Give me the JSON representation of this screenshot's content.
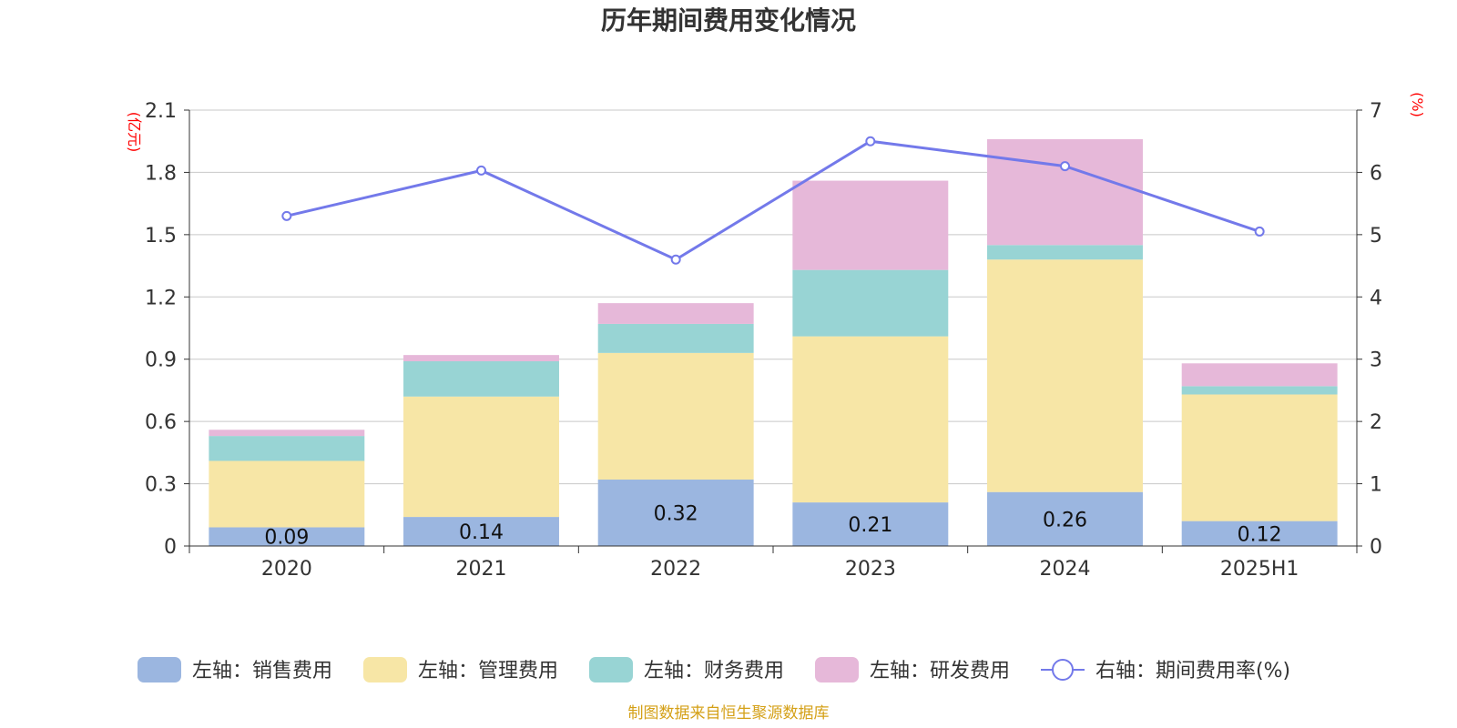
{
  "title": "历年期间费用变化情况",
  "left_unit": "(亿元)",
  "right_unit": "(%)",
  "source": "制图数据来自恒生聚源数据库",
  "colors": {
    "sales": "#9bb6e0",
    "admin": "#f7e6a6",
    "finance": "#98d4d4",
    "rd": "#e6b8d9",
    "rate": "#7379ea",
    "unit_red": "#ff0000",
    "source_gold": "#d4a017",
    "grid": "#c8c8c8",
    "axis": "#333333"
  },
  "chart_data": {
    "type": "bar",
    "stacked": true,
    "categories": [
      "2020",
      "2021",
      "2022",
      "2023",
      "2024",
      "2025H1"
    ],
    "series": [
      {
        "name": "左轴：销售费用",
        "axis": "left",
        "values": [
          0.09,
          0.14,
          0.32,
          0.21,
          0.26,
          0.12
        ],
        "labels": [
          "0.09",
          "0.14",
          "0.32",
          "0.21",
          "0.26",
          "0.12"
        ]
      },
      {
        "name": "左轴：管理费用",
        "axis": "left",
        "values": [
          0.32,
          0.58,
          0.61,
          0.8,
          1.12,
          0.61
        ]
      },
      {
        "name": "左轴：财务费用",
        "axis": "left",
        "values": [
          0.12,
          0.17,
          0.14,
          0.32,
          0.07,
          0.04
        ]
      },
      {
        "name": "左轴：研发费用",
        "axis": "left",
        "values": [
          0.03,
          0.03,
          0.1,
          0.43,
          0.51,
          0.11
        ]
      },
      {
        "name": "右轴：期间费用率(%)",
        "axis": "right",
        "type": "line",
        "values": [
          5.3,
          6.03,
          4.6,
          6.5,
          6.1,
          5.05
        ]
      }
    ],
    "y_left": {
      "min": 0,
      "max": 2.1,
      "ticks": [
        "0",
        "0.3",
        "0.6",
        "0.9",
        "1.2",
        "1.5",
        "1.8",
        "2.1"
      ]
    },
    "y_right": {
      "min": 0,
      "max": 7,
      "ticks": [
        "0",
        "1",
        "2",
        "3",
        "4",
        "5",
        "6",
        "7"
      ]
    },
    "grid": true,
    "legend": "bottom"
  }
}
